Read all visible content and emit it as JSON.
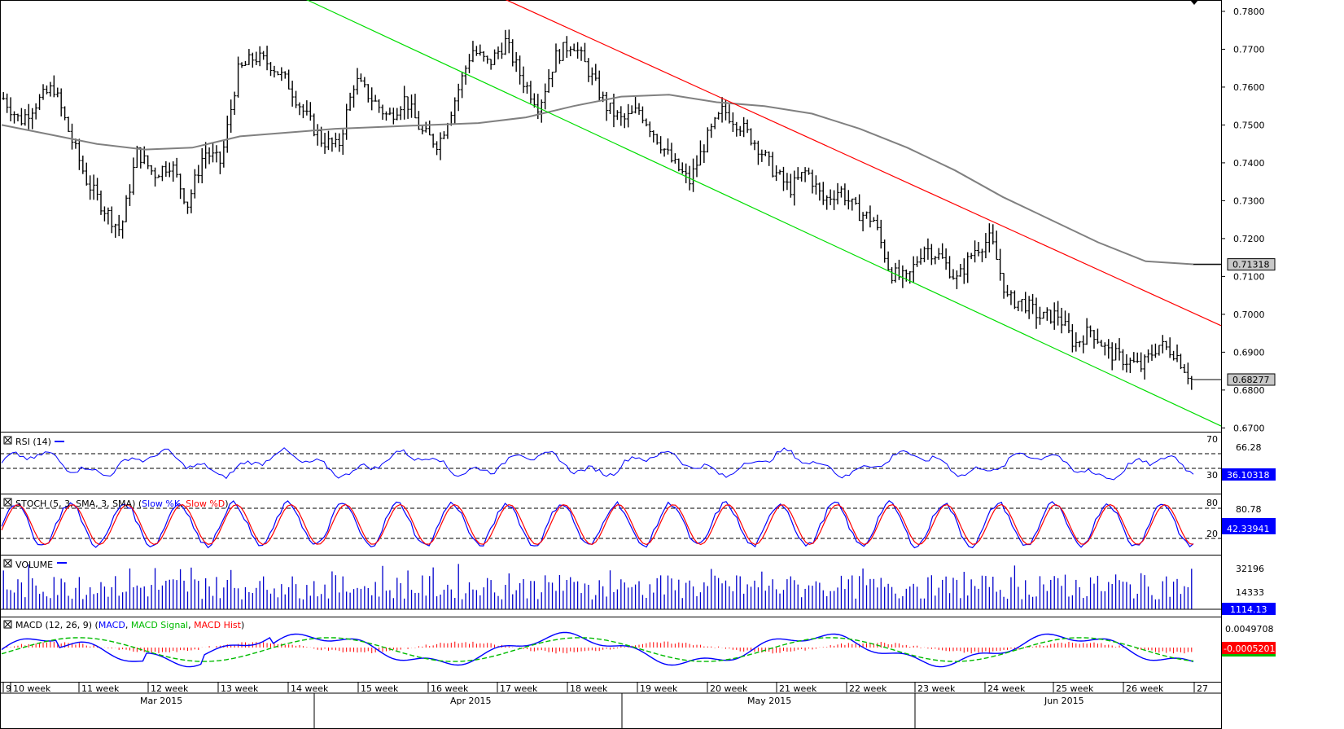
{
  "chart_data": {
    "type": "ohlc",
    "title": "",
    "price_axis": {
      "ticks": [
        "0.7800",
        "0.7700",
        "0.7600",
        "0.7500",
        "0.7400",
        "0.7300",
        "0.7200",
        "0.7100",
        "0.7000",
        "0.6900",
        "0.6800",
        "0.6700"
      ],
      "range": [
        0.669,
        0.783
      ]
    },
    "labels": {
      "sma_value": "0.71318",
      "last_price": "0.68277"
    },
    "series": [
      {
        "name": "",
        "note": "price OHLC bars, daily",
        "close_path": [
          0.757,
          0.751,
          0.756,
          0.76,
          0.747,
          0.735,
          0.728,
          0.722,
          0.743,
          0.737,
          0.74,
          0.729,
          0.743,
          0.74,
          0.764,
          0.768,
          0.766,
          0.761,
          0.753,
          0.746,
          0.744,
          0.762,
          0.757,
          0.752,
          0.757,
          0.748,
          0.745,
          0.757,
          0.77,
          0.766,
          0.772,
          0.762,
          0.755,
          0.768,
          0.772,
          0.764,
          0.755,
          0.751,
          0.754,
          0.747,
          0.74,
          0.735,
          0.746,
          0.754,
          0.75,
          0.745,
          0.738,
          0.733,
          0.738,
          0.73,
          0.733,
          0.727,
          0.725,
          0.711,
          0.709,
          0.718,
          0.715,
          0.709,
          0.717,
          0.72,
          0.704,
          0.703,
          0.699,
          0.7,
          0.692,
          0.696,
          0.69,
          0.688,
          0.686,
          0.692,
          0.69,
          0.6828
        ]
      },
      {
        "name": "",
        "note": "moving average",
        "values": [
          0.75,
          0.7475,
          0.745,
          0.7435,
          0.744,
          0.747,
          0.748,
          0.749,
          0.7495,
          0.75,
          0.7505,
          0.752,
          0.755,
          0.7575,
          0.758,
          0.756,
          0.755,
          0.753,
          0.749,
          0.744,
          0.738,
          0.731,
          0.725,
          0.719,
          0.714,
          0.7132
        ]
      },
      {
        "name": "",
        "note": "upper channel line",
        "points": [
          [
            0.408,
            0.784
          ],
          [
            1.0,
            0.697
          ]
        ]
      },
      {
        "name": "",
        "note": "lower channel line",
        "points": [
          [
            0.245,
            0.784
          ],
          [
            1.0,
            0.6705
          ]
        ]
      }
    ],
    "indicators": [
      {
        "id": "rsi",
        "label": "RSI (14)",
        "levels": [
          "70",
          "30"
        ],
        "axis_ticks": [
          "66.28"
        ],
        "value_label": "36.10318"
      },
      {
        "id": "stoch",
        "label": "STOCH (5, 3, SMA, 3, SMA)",
        "legend": [
          "Slow %K",
          "Slow %D"
        ],
        "levels": [
          "80",
          "20"
        ],
        "axis_ticks": [
          "80.78"
        ],
        "value_label": "42.33941"
      },
      {
        "id": "volume",
        "label": "VOLUME",
        "axis_ticks": [
          "32196",
          "14333"
        ],
        "value_label": "1114.13"
      },
      {
        "id": "macd",
        "label": "MACD (12, 26, 9)",
        "legend": [
          "MACD",
          "MACD Signal",
          "MACD Hist"
        ],
        "axis_ticks": [
          "0.0049708"
        ],
        "value_label": "-0.0005201"
      }
    ],
    "x_axis": {
      "weeks": [
        "9",
        "10 week",
        "11 week",
        "12 week",
        "13 week",
        "14 week",
        "15 week",
        "16 week",
        "17 week",
        "18 week",
        "19 week",
        "20 week",
        "21 week",
        "22 week",
        "23 week",
        "24 week",
        "25 week",
        "26 week",
        "27"
      ],
      "months": [
        "Mar 2015",
        "Apr 2015",
        "May 2015",
        "Jun 2015"
      ]
    },
    "colors": {
      "price": "#000000",
      "ma": "#808080",
      "upper": "#ff0000",
      "lower": "#00dd00",
      "rsi": "#0000ff",
      "k": "#0000ff",
      "d": "#ff0000",
      "volume": "#0000cc",
      "macd": "#0000ff",
      "signal": "#00bb00",
      "hist": "#ff0000",
      "label_blue": "#0000ff"
    }
  }
}
